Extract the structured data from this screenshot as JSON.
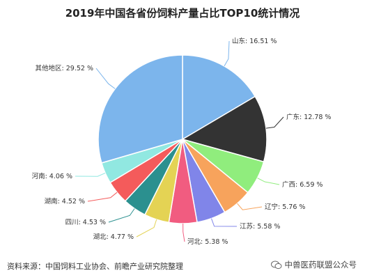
{
  "chart_data": {
    "type": "pie",
    "title": "2019年中国各省份饲料产量占比TOP10统计情况",
    "slices": [
      {
        "name": "山东",
        "value": 16.51,
        "label": "山东: 16.51 %",
        "color": "#7cb5ec"
      },
      {
        "name": "广东",
        "value": 12.78,
        "label": "广东: 12.78 %",
        "color": "#333333"
      },
      {
        "name": "广西",
        "value": 6.59,
        "label": "广西: 6.59 %",
        "color": "#90ed7d"
      },
      {
        "name": "辽宁",
        "value": 5.76,
        "label": "辽宁: 5.76 %",
        "color": "#f7a35c"
      },
      {
        "name": "江苏",
        "value": 5.58,
        "label": "江苏: 5.58 %",
        "color": "#8085e9"
      },
      {
        "name": "河北",
        "value": 5.38,
        "label": "河北: 5.38 %",
        "color": "#f15c80"
      },
      {
        "name": "湖北",
        "value": 4.77,
        "label": "湖北: 4.77 %",
        "color": "#e4d354"
      },
      {
        "name": "四川",
        "value": 4.53,
        "label": "四川: 4.53 %",
        "color": "#2b908f"
      },
      {
        "name": "湖南",
        "value": 4.52,
        "label": "湖南: 4.52 %",
        "color": "#f45b5b"
      },
      {
        "name": "河南",
        "value": 4.06,
        "label": "河南: 4.06 %",
        "color": "#91e8e1"
      },
      {
        "name": "其他地区",
        "value": 29.52,
        "label": "其他地区: 29.52 %",
        "color": "#7cb5ec"
      }
    ]
  },
  "footer": {
    "source": "资料来源：中国饲料工业协会、前瞻产业研究院整理",
    "wechat": "中兽医药联盟公众号"
  }
}
